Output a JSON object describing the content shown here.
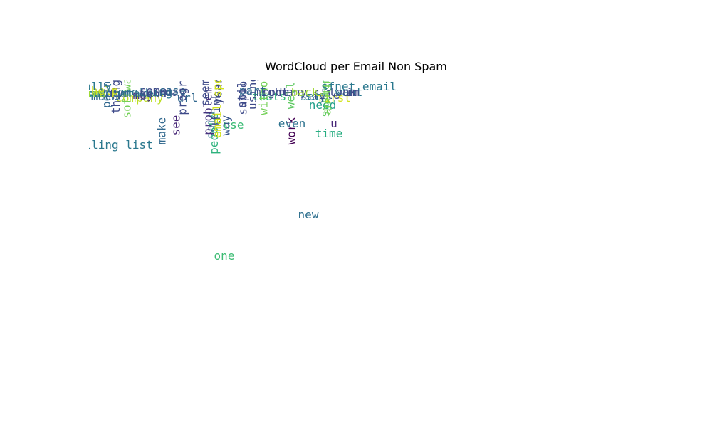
{
  "chart_data": {
    "type": "wordcloud",
    "title": "WordCloud per Email Non Spam",
    "words": [
      {
        "text": "one",
        "weight": 1.0,
        "color": "#3dbc74",
        "orientation": "horizontal"
      },
      {
        "text": "new",
        "weight": 0.93,
        "color": "#2d6f8e",
        "orientation": "horizontal"
      },
      {
        "text": "mailing list",
        "weight": 0.55,
        "color": "#2a788e",
        "orientation": "horizontal"
      },
      {
        "text": "people",
        "weight": 0.38,
        "color": "#2db27d",
        "orientation": "vertical"
      },
      {
        "text": "time",
        "weight": 0.38,
        "color": "#27ad81",
        "orientation": "horizontal"
      },
      {
        "text": "work",
        "weight": 0.36,
        "color": "#440154",
        "orientation": "vertical"
      },
      {
        "text": "make",
        "weight": 0.34,
        "color": "#31688e",
        "orientation": "vertical"
      },
      {
        "text": "said",
        "weight": 0.33,
        "color": "#2c728e",
        "orientation": "vertical"
      },
      {
        "text": "use",
        "weight": 0.33,
        "color": "#3bbb75",
        "orientation": "horizontal"
      },
      {
        "text": "see",
        "weight": 0.33,
        "color": "#482878",
        "orientation": "vertical"
      },
      {
        "text": "way",
        "weight": 0.32,
        "color": "#39568c",
        "orientation": "vertical"
      },
      {
        "text": "even",
        "weight": 0.3,
        "color": "#2c728e",
        "orientation": "horizontal"
      },
      {
        "text": "u",
        "weight": 0.3,
        "color": "#482878",
        "orientation": "horizontal"
      },
      {
        "text": "problem",
        "weight": 0.22,
        "color": "#46327e",
        "orientation": "vertical"
      },
      {
        "text": "think",
        "weight": 0.21,
        "color": "#3e4a89",
        "orientation": "vertical"
      },
      {
        "text": "need",
        "weight": 0.19,
        "color": "#1f9e89",
        "orientation": "horizontal"
      },
      {
        "text": "company",
        "weight": 0.14,
        "color": "#bddf26",
        "orientation": "horizontal"
      },
      {
        "text": "thing",
        "weight": 0.12,
        "color": "#3e4a89",
        "orientation": "vertical"
      },
      {
        "text": "url",
        "weight": 0.12,
        "color": "#31688e",
        "orientation": "horizontal"
      },
      {
        "text": "much",
        "weight": 0.12,
        "color": "#31688e",
        "orientation": "horizontal"
      },
      {
        "text": "first",
        "weight": 0.12,
        "color": "#d2e21b",
        "orientation": "horizontal"
      },
      {
        "text": "say",
        "weight": 0.12,
        "color": "#31688e",
        "orientation": "horizontal"
      },
      {
        "text": "system",
        "weight": 0.12,
        "color": "#5ec962",
        "orientation": "vertical"
      },
      {
        "text": "thats",
        "weight": 0.12,
        "color": "#35b779",
        "orientation": "horizontal"
      },
      {
        "text": "set",
        "weight": 0.11,
        "color": "#2a788e",
        "orientation": "horizontal"
      },
      {
        "text": "file",
        "weight": 0.11,
        "color": "#3e4a89",
        "orientation": "horizontal"
      },
      {
        "text": "well",
        "weight": 0.11,
        "color": "#5ec962",
        "orientation": "vertical"
      },
      {
        "text": "may",
        "weight": 0.11,
        "color": "#472d7b",
        "orientation": "horizontal"
      },
      {
        "text": "know",
        "weight": 0.1,
        "color": "#2c728e",
        "orientation": "horizontal"
      },
      {
        "text": "used",
        "weight": 0.1,
        "color": "#21918c",
        "orientation": "horizontal"
      },
      {
        "text": "spam",
        "weight": 0.1,
        "color": "#2a788e",
        "orientation": "horizontal"
      },
      {
        "text": "take",
        "weight": 0.1,
        "color": "#2c728e",
        "orientation": "horizontal"
      },
      {
        "text": "lot",
        "weight": 0.1,
        "color": "#31688e",
        "orientation": "horizontal"
      },
      {
        "text": "two",
        "weight": 0.1,
        "color": "#3e4a89",
        "orientation": "horizontal"
      },
      {
        "text": "go",
        "weight": 0.1,
        "color": "#31688e",
        "orientation": "horizontal"
      },
      {
        "text": "good",
        "weight": 0.1,
        "color": "#3e4a89",
        "orientation": "horizontal"
      },
      {
        "text": "day",
        "weight": 0.09,
        "color": "#3e4a89",
        "orientation": "horizontal"
      },
      {
        "text": "find",
        "weight": 0.1,
        "color": "#a0da39",
        "orientation": "horizontal"
      },
      {
        "text": "something",
        "weight": 0.09,
        "color": "#2c728e",
        "orientation": "horizontal"
      },
      {
        "text": "many",
        "weight": 0.09,
        "color": "#3e4a89",
        "orientation": "horizontal"
      },
      {
        "text": "want",
        "weight": 0.09,
        "color": "#2a788e",
        "orientation": "horizontal"
      },
      {
        "text": "look",
        "weight": 0.09,
        "color": "#3e4a89",
        "orientation": "horizontal"
      },
      {
        "text": "back",
        "weight": 0.09,
        "color": "#a0da39",
        "orientation": "horizontal"
      },
      {
        "text": "might",
        "weight": 0.09,
        "color": "#3e4a89",
        "orientation": "horizontal"
      },
      {
        "text": "code",
        "weight": 0.09,
        "color": "#3e4a89",
        "orientation": "horizontal"
      },
      {
        "text": "im",
        "weight": 0.09,
        "color": "#3e4a89",
        "orientation": "horizontal"
      },
      {
        "text": "seem",
        "weight": 0.09,
        "color": "#3e4a89",
        "orientation": "vertical"
      },
      {
        "text": "year",
        "weight": 0.08,
        "color": "#3e4a89",
        "orientation": "vertical"
      },
      {
        "text": "using",
        "weight": 0.09,
        "color": "#3e4a89",
        "orientation": "vertical"
      },
      {
        "text": "support",
        "weight": 0.08,
        "color": "#3e4a89",
        "orientation": "vertical"
      },
      {
        "text": "without",
        "weight": 0.08,
        "color": "#73d056",
        "orientation": "vertical"
      },
      {
        "text": "point",
        "weight": 0.08,
        "color": "#31688e",
        "orientation": "vertical"
      },
      {
        "text": "help",
        "weight": 0.08,
        "color": "#d2e21b",
        "orientation": "horizontal"
      },
      {
        "text": "come",
        "weight": 0.08,
        "color": "#3e4a89",
        "orientation": "horizontal"
      },
      {
        "text": "case",
        "weight": 0.08,
        "color": "#31688e",
        "orientation": "horizontal"
      },
      {
        "text": "part",
        "weight": 0.08,
        "color": "#31688e",
        "orientation": "horizontal"
      },
      {
        "text": "program",
        "weight": 0.08,
        "color": "#3e4a89",
        "orientation": "vertical"
      },
      {
        "text": "another",
        "weight": 0.08,
        "color": "#73d056",
        "orientation": "vertical"
      },
      {
        "text": "software",
        "weight": 0.08,
        "color": "#73d056",
        "orientation": "vertical"
      },
      {
        "text": "still",
        "weight": 0.08,
        "color": "#3e4a89",
        "orientation": "vertical"
      },
      {
        "text": "really",
        "weight": 0.05,
        "color": "#2a788e",
        "orientation": "horizontal"
      },
      {
        "text": "email sponsored",
        "weight": 0.04,
        "color": "#d2e21b",
        "orientation": "vertical"
      },
      {
        "text": "sfnet email",
        "weight": 0.04,
        "color": "#2a788e",
        "orientation": "horizontal"
      }
    ]
  }
}
